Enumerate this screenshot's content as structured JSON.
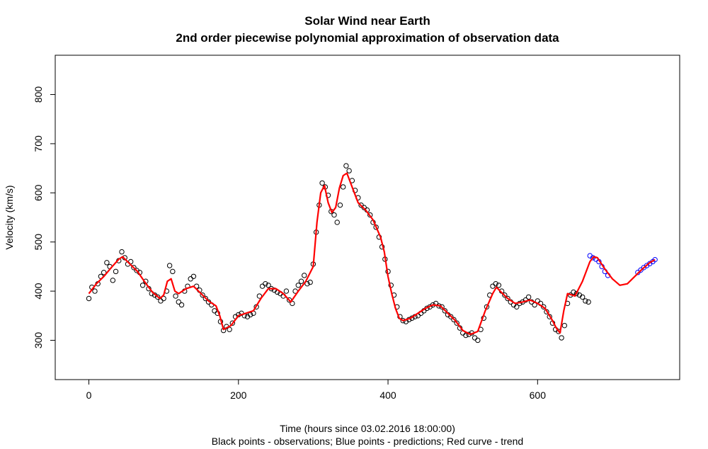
{
  "chart_data": {
    "type": "scatter",
    "title": "Solar Wind near Earth",
    "subtitle": "2nd order piecewise polynomial approximation of observation data",
    "xlabel": "Time (hours since 03.02.2016  18:00:00)",
    "caption": "Black points - observations; Blue points - predictions; Red curve - trend",
    "ylabel": "Velocity (km/s)",
    "xlim": [
      -45,
      790
    ],
    "ylim": [
      220,
      880
    ],
    "x_ticks": [
      0,
      200,
      400,
      600
    ],
    "y_ticks": [
      300,
      400,
      500,
      600,
      700,
      800
    ],
    "x_tick_labels": [
      "0",
      "200",
      "400",
      "600"
    ],
    "y_tick_labels": [
      "300",
      "400",
      "500",
      "600",
      "700",
      "800"
    ],
    "grid": false,
    "colors": {
      "observations": "#000000",
      "predictions": "#0000ff",
      "trend": "#ff0000"
    },
    "trend": {
      "x": [
        0,
        10,
        20,
        30,
        40,
        45,
        55,
        65,
        75,
        85,
        95,
        100,
        105,
        110,
        115,
        120,
        130,
        140,
        150,
        160,
        170,
        175,
        180,
        190,
        200,
        210,
        220,
        230,
        240,
        250,
        260,
        270,
        280,
        290,
        300,
        305,
        310,
        315,
        320,
        325,
        330,
        335,
        340,
        345,
        350,
        355,
        360,
        370,
        380,
        390,
        395,
        400,
        405,
        410,
        415,
        420,
        430,
        440,
        450,
        460,
        470,
        480,
        490,
        500,
        510,
        520,
        530,
        540,
        545,
        550,
        560,
        570,
        580,
        590,
        600,
        610,
        620,
        625,
        630,
        635,
        640,
        650,
        660,
        670,
        675,
        680,
        690,
        700,
        710,
        720,
        730,
        740,
        750,
        757
      ],
      "y": [
        395,
        415,
        430,
        448,
        465,
        470,
        455,
        440,
        418,
        398,
        385,
        392,
        420,
        425,
        400,
        395,
        405,
        410,
        395,
        380,
        370,
        350,
        322,
        330,
        350,
        355,
        360,
        385,
        405,
        405,
        395,
        378,
        400,
        420,
        450,
        540,
        600,
        615,
        580,
        560,
        570,
        610,
        635,
        640,
        620,
        600,
        580,
        565,
        545,
        510,
        480,
        430,
        395,
        365,
        345,
        340,
        345,
        355,
        365,
        372,
        370,
        355,
        340,
        320,
        312,
        318,
        360,
        395,
        408,
        400,
        385,
        375,
        378,
        382,
        375,
        365,
        340,
        325,
        315,
        360,
        395,
        390,
        420,
        460,
        470,
        468,
        445,
        425,
        412,
        415,
        430,
        445,
        458,
        464
      ]
    },
    "observations": {
      "x": [
        0,
        4,
        8,
        12,
        16,
        20,
        24,
        28,
        32,
        36,
        40,
        44,
        48,
        52,
        56,
        60,
        64,
        68,
        72,
        76,
        80,
        84,
        88,
        92,
        96,
        100,
        104,
        108,
        112,
        116,
        120,
        124,
        128,
        132,
        136,
        140,
        144,
        148,
        152,
        156,
        160,
        164,
        168,
        172,
        176,
        180,
        184,
        188,
        192,
        196,
        200,
        204,
        208,
        212,
        216,
        220,
        224,
        228,
        232,
        236,
        240,
        244,
        248,
        252,
        256,
        260,
        264,
        268,
        272,
        276,
        280,
        284,
        288,
        292,
        296,
        300,
        304,
        308,
        312,
        316,
        320,
        324,
        328,
        332,
        336,
        340,
        344,
        348,
        352,
        356,
        360,
        364,
        368,
        372,
        376,
        380,
        384,
        388,
        392,
        396,
        400,
        404,
        408,
        412,
        416,
        420,
        424,
        428,
        432,
        436,
        440,
        444,
        448,
        452,
        456,
        460,
        464,
        468,
        472,
        476,
        480,
        484,
        488,
        492,
        496,
        500,
        504,
        508,
        512,
        516,
        520,
        524,
        528,
        532,
        536,
        540,
        544,
        548,
        552,
        556,
        560,
        564,
        568,
        572,
        576,
        580,
        584,
        588,
        592,
        596,
        600,
        604,
        608,
        612,
        616,
        620,
        624,
        628,
        632,
        636,
        640,
        644,
        648,
        652,
        656,
        660,
        664,
        668
      ],
      "y": [
        385,
        408,
        400,
        415,
        430,
        438,
        458,
        450,
        422,
        440,
        462,
        480,
        468,
        455,
        460,
        448,
        442,
        438,
        412,
        420,
        405,
        395,
        392,
        388,
        380,
        385,
        400,
        452,
        440,
        390,
        378,
        372,
        400,
        410,
        425,
        430,
        410,
        402,
        392,
        385,
        378,
        372,
        360,
        355,
        338,
        320,
        328,
        322,
        335,
        348,
        352,
        355,
        350,
        348,
        352,
        355,
        368,
        390,
        410,
        415,
        412,
        405,
        402,
        398,
        395,
        390,
        400,
        382,
        375,
        400,
        412,
        420,
        432,
        415,
        418,
        455,
        520,
        575,
        620,
        612,
        595,
        562,
        555,
        540,
        575,
        612,
        655,
        645,
        625,
        605,
        590,
        575,
        570,
        565,
        555,
        540,
        530,
        510,
        490,
        465,
        440,
        412,
        392,
        368,
        348,
        340,
        338,
        342,
        345,
        348,
        350,
        355,
        360,
        365,
        368,
        372,
        375,
        370,
        368,
        360,
        352,
        348,
        342,
        335,
        325,
        315,
        310,
        312,
        315,
        305,
        300,
        322,
        345,
        368,
        392,
        410,
        415,
        412,
        400,
        392,
        385,
        378,
        372,
        368,
        375,
        378,
        382,
        388,
        378,
        372,
        380,
        375,
        368,
        358,
        348,
        335,
        322,
        318,
        305,
        330,
        375,
        392,
        398,
        395,
        392,
        388,
        380,
        378
      ]
    },
    "predictions": {
      "x": [
        670,
        674,
        678,
        682,
        686,
        690,
        694,
        734,
        738,
        742,
        746,
        750,
        754,
        757
      ],
      "y": [
        472,
        468,
        465,
        460,
        450,
        440,
        432,
        438,
        443,
        448,
        452,
        456,
        460,
        464
      ]
    }
  }
}
